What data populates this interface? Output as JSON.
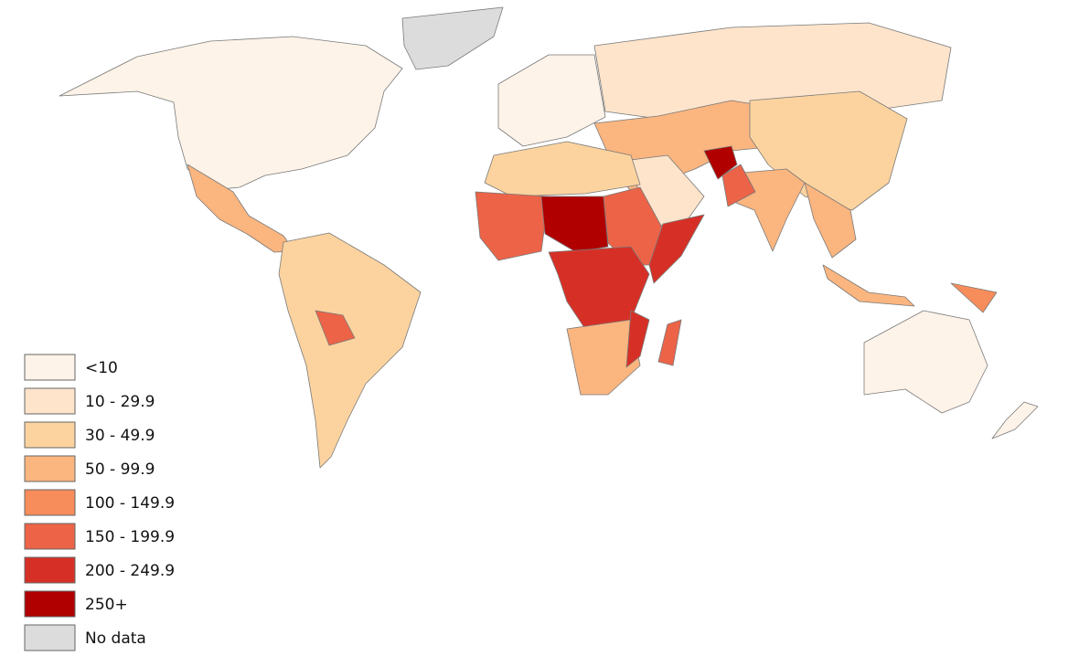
{
  "legend": {
    "items": [
      {
        "label": "<10",
        "color": "#fef3e8"
      },
      {
        "label": "10 - 29.9",
        "color": "#fde4cb"
      },
      {
        "label": "30 - 49.9",
        "color": "#fcd39f"
      },
      {
        "label": "50 - 99.9",
        "color": "#fbb57f"
      },
      {
        "label": "100 - 149.9",
        "color": "#f78d5a"
      },
      {
        "label": "150 - 199.9",
        "color": "#ec6348"
      },
      {
        "label": "200 - 249.9",
        "color": "#d63026"
      },
      {
        "label": "250+",
        "color": "#b00000"
      },
      {
        "label": "No data",
        "color": "#dcdcdc"
      }
    ]
  }
}
